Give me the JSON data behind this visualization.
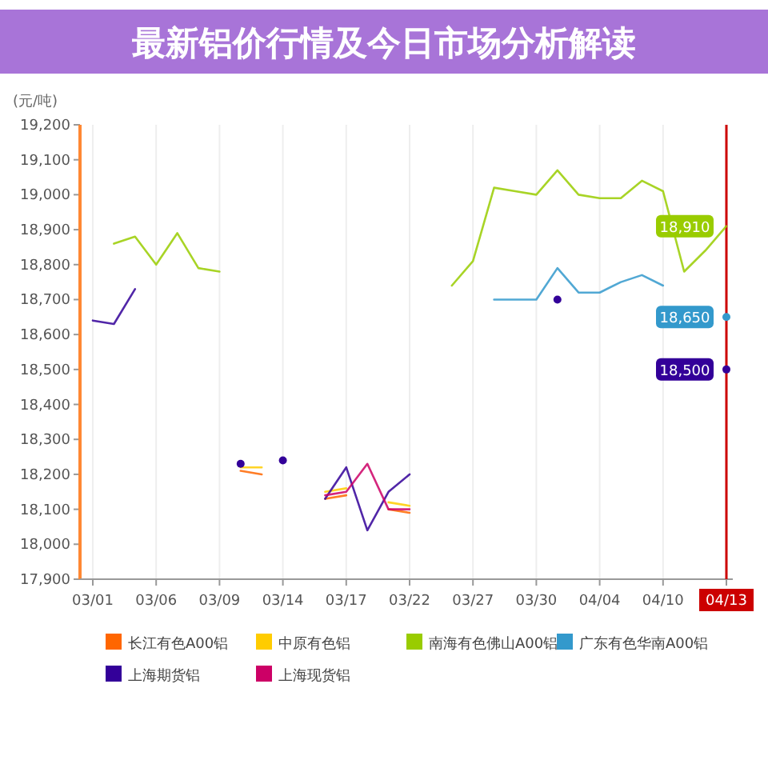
{
  "chart_data": {
    "type": "line",
    "title": "最新铝价行情及今日市场分析解读",
    "ylabel": "(元/吨)",
    "categories": [
      "03/01",
      null,
      null,
      "03/06",
      null,
      null,
      "03/09",
      null,
      null,
      "03/14",
      null,
      null,
      "03/17",
      null,
      null,
      "03/22",
      null,
      null,
      "03/27",
      null,
      null,
      "03/30",
      null,
      null,
      "04/04",
      null,
      null,
      "04/10",
      null,
      null,
      "04/13"
    ],
    "ylim": [
      17900,
      19200
    ],
    "yticks": [
      {
        "value": 17900,
        "label": "17,900"
      },
      {
        "value": 18000,
        "label": "18,000"
      },
      {
        "value": 18100,
        "label": "18,100"
      },
      {
        "value": 18200,
        "label": "18,200"
      },
      {
        "value": 18300,
        "label": "18,300"
      },
      {
        "value": 18400,
        "label": "18,400"
      },
      {
        "value": 18500,
        "label": "18,500"
      },
      {
        "value": 18600,
        "label": "18,600"
      },
      {
        "value": 18700,
        "label": "18,700"
      },
      {
        "value": 18800,
        "label": "18,800"
      },
      {
        "value": 18900,
        "label": "18,900"
      },
      {
        "value": 19000,
        "label": "19,000"
      },
      {
        "value": 19100,
        "label": "19,100"
      },
      {
        "value": 19200,
        "label": "19,200"
      }
    ],
    "grid": "x",
    "legend": "bottom",
    "ref_lines": [
      {
        "axis": "x",
        "value": "04/13",
        "color": "#cc0000"
      }
    ],
    "series": [
      {
        "name": "长江有色A00铝",
        "color": "#ff6600",
        "values": [
          null,
          null,
          null,
          null,
          null,
          null,
          null,
          18210,
          18200,
          null,
          null,
          18130,
          18140,
          null,
          18100,
          18090,
          null,
          null,
          null,
          null,
          null,
          null,
          null,
          null,
          null,
          null,
          null,
          null,
          null,
          null,
          null
        ]
      },
      {
        "name": "中原有色铝",
        "color": "#ffcc00",
        "values": [
          null,
          null,
          null,
          null,
          null,
          null,
          null,
          18220,
          18220,
          null,
          null,
          18150,
          18160,
          null,
          18120,
          18110,
          null,
          null,
          null,
          null,
          null,
          null,
          null,
          null,
          null,
          null,
          null,
          null,
          null,
          null,
          null
        ]
      },
      {
        "name": "南海有色佛山A00铝",
        "color": "#99cc00",
        "values": [
          null,
          18860,
          18880,
          18800,
          18890,
          18790,
          18780,
          null,
          null,
          null,
          null,
          null,
          null,
          null,
          null,
          null,
          null,
          18740,
          18810,
          19020,
          19010,
          19000,
          19070,
          19000,
          18990,
          18990,
          19040,
          19010,
          18780,
          18840,
          18910
        ],
        "value_labels": [
          null,
          null,
          null,
          null,
          null,
          null,
          null,
          null,
          null,
          null,
          null,
          null,
          null,
          null,
          null,
          null,
          null,
          null,
          null,
          null,
          null,
          null,
          null,
          null,
          null,
          null,
          null,
          null,
          null,
          null,
          "18,910"
        ]
      },
      {
        "name": "广东有色华南A00铝",
        "color": "#3399cc",
        "values": [
          null,
          null,
          null,
          null,
          null,
          null,
          null,
          null,
          null,
          null,
          null,
          null,
          null,
          null,
          null,
          null,
          null,
          null,
          null,
          18700,
          18700,
          18700,
          18790,
          18720,
          18720,
          18750,
          18770,
          18740,
          null,
          null,
          18650
        ],
        "value_labels": [
          null,
          null,
          null,
          null,
          null,
          null,
          null,
          null,
          null,
          null,
          null,
          null,
          null,
          null,
          null,
          null,
          null,
          null,
          null,
          null,
          null,
          null,
          null,
          null,
          null,
          null,
          null,
          null,
          null,
          null,
          "18,650"
        ]
      },
      {
        "name": "上海期货铝",
        "color": "#330099",
        "values": [
          18640,
          18630,
          18730,
          null,
          null,
          null,
          null,
          18230,
          null,
          18240,
          null,
          18130,
          18220,
          18040,
          18150,
          18200,
          null,
          null,
          null,
          null,
          null,
          null,
          18700,
          null,
          null,
          null,
          null,
          null,
          null,
          null,
          18500
        ],
        "value_labels": [
          null,
          null,
          null,
          null,
          null,
          null,
          null,
          null,
          null,
          null,
          null,
          null,
          null,
          null,
          null,
          null,
          null,
          null,
          null,
          null,
          null,
          null,
          null,
          null,
          null,
          null,
          null,
          null,
          null,
          null,
          "18,500"
        ]
      },
      {
        "name": "上海现货铝",
        "color": "#cc0066",
        "values": [
          null,
          null,
          null,
          null,
          null,
          null,
          null,
          null,
          null,
          null,
          null,
          18140,
          18150,
          18230,
          18100,
          18100,
          null,
          null,
          null,
          null,
          null,
          null,
          null,
          null,
          null,
          null,
          null,
          null,
          null,
          null,
          null
        ]
      }
    ]
  }
}
